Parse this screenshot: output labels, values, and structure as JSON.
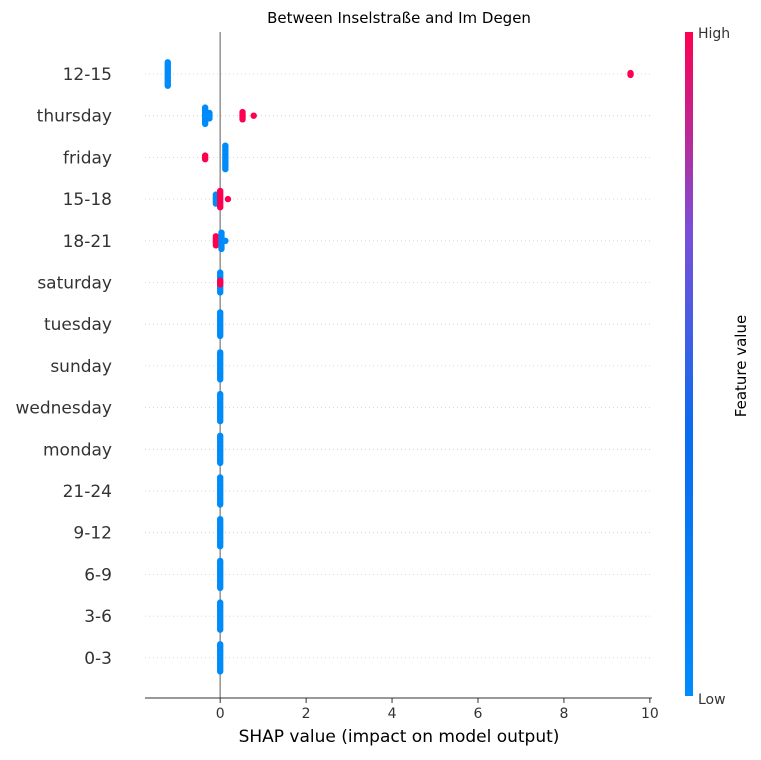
{
  "chart_data": {
    "type": "scatter",
    "subtype": "shap-beeswarm-summary",
    "title": "Between Inselstraße and Im Degen",
    "xlabel": "SHAP value (impact on model output)",
    "ylabel": "",
    "xlim": [
      -1.75,
      10.05
    ],
    "xticks": [
      0,
      2,
      4,
      6,
      8,
      10
    ],
    "xtick_labels": [
      "0",
      "2",
      "4",
      "6",
      "8",
      "10"
    ],
    "zero_line": true,
    "row_gridlines": "dotted",
    "features": [
      "12-15",
      "thursday",
      "friday",
      "15-18",
      "18-21",
      "saturday",
      "tuesday",
      "sunday",
      "wednesday",
      "monday",
      "21-24",
      "9-12",
      "6-9",
      "3-6",
      "0-3"
    ],
    "rows": [
      {
        "feature": "12-15",
        "points": [
          {
            "x": -1.22,
            "n": 14,
            "level": "low"
          },
          {
            "x": 9.55,
            "n": 2,
            "level": "high"
          }
        ]
      },
      {
        "feature": "thursday",
        "points": [
          {
            "x": -0.35,
            "n": 10,
            "level": "low"
          },
          {
            "x": -0.25,
            "n": 4,
            "level": "low"
          },
          {
            "x": 0.52,
            "n": 5,
            "level": "high"
          },
          {
            "x": 0.78,
            "n": 1,
            "level": "high"
          }
        ]
      },
      {
        "feature": "friday",
        "points": [
          {
            "x": -0.35,
            "n": 3,
            "level": "high"
          },
          {
            "x": 0.12,
            "n": 14,
            "level": "low"
          }
        ]
      },
      {
        "feature": "15-18",
        "points": [
          {
            "x": -0.1,
            "n": 6,
            "level": "low"
          },
          {
            "x": 0.0,
            "n": 10,
            "level": "high"
          },
          {
            "x": 0.18,
            "n": 1,
            "level": "high"
          }
        ]
      },
      {
        "feature": "18-21",
        "points": [
          {
            "x": -0.1,
            "n": 6,
            "level": "high"
          },
          {
            "x": 0.03,
            "n": 10,
            "level": "low"
          },
          {
            "x": 0.12,
            "n": 1,
            "level": "low"
          }
        ]
      },
      {
        "feature": "saturday",
        "points": [
          {
            "x": 0.0,
            "n": 12,
            "level": "low"
          },
          {
            "x": 0.0,
            "n": 3,
            "level": "high"
          }
        ]
      },
      {
        "feature": "tuesday",
        "points": [
          {
            "x": 0.0,
            "n": 14,
            "level": "low"
          }
        ]
      },
      {
        "feature": "sunday",
        "points": [
          {
            "x": 0.0,
            "n": 16,
            "level": "low"
          }
        ]
      },
      {
        "feature": "wednesday",
        "points": [
          {
            "x": 0.0,
            "n": 16,
            "level": "low"
          }
        ]
      },
      {
        "feature": "monday",
        "points": [
          {
            "x": 0.0,
            "n": 16,
            "level": "low"
          }
        ]
      },
      {
        "feature": "21-24",
        "points": [
          {
            "x": 0.0,
            "n": 16,
            "level": "low"
          }
        ]
      },
      {
        "feature": "9-12",
        "points": [
          {
            "x": 0.0,
            "n": 16,
            "level": "low"
          }
        ]
      },
      {
        "feature": "6-9",
        "points": [
          {
            "x": 0.0,
            "n": 16,
            "level": "low"
          }
        ]
      },
      {
        "feature": "3-6",
        "points": [
          {
            "x": 0.0,
            "n": 16,
            "level": "low"
          }
        ]
      },
      {
        "feature": "0-3",
        "points": [
          {
            "x": 0.0,
            "n": 16,
            "level": "low"
          }
        ]
      }
    ],
    "colorbar": {
      "label": "Feature value",
      "high_label": "High",
      "low_label": "Low",
      "low_color": "#008bfb",
      "high_color": "#ff0051"
    }
  }
}
